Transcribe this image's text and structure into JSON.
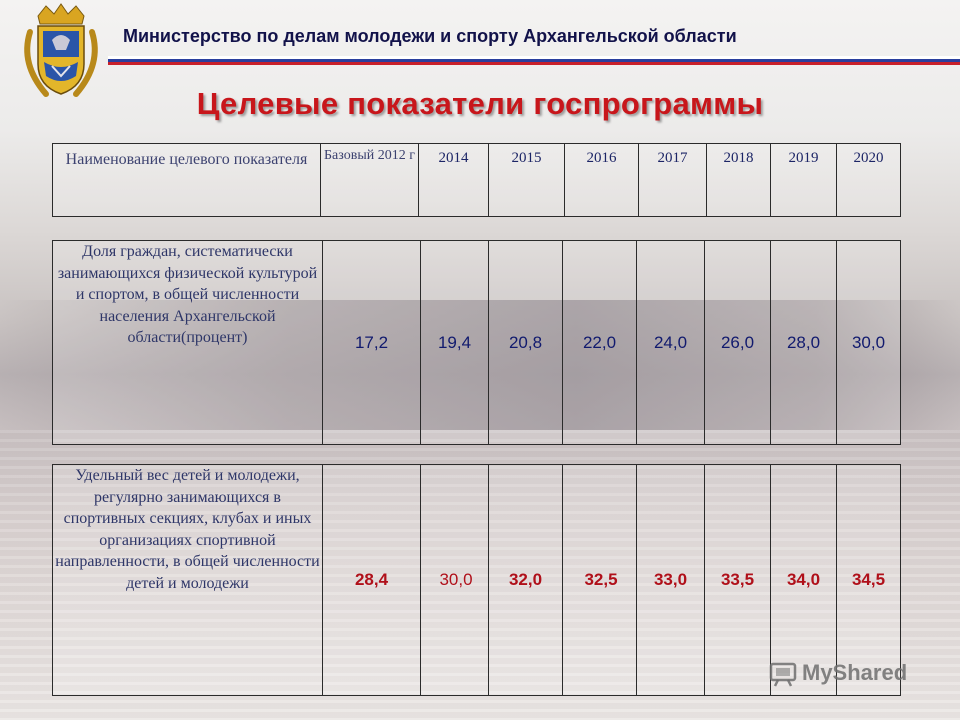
{
  "header": {
    "ministry": "Министерство по делам молодежи и спорту Архангельской области",
    "title": "Целевые показатели госпрограммы"
  },
  "table": {
    "columns": {
      "name": "Наименование целевого показателя",
      "base": "Базовый 2012 г",
      "years": [
        "2014",
        "2015",
        "2016",
        "2017",
        "2018",
        "2019",
        "2020"
      ]
    },
    "rows": [
      {
        "name": "Доля граждан, систематически занимающихся физической культурой и спортом, в общей численности населения Архангельской области(процент)",
        "base": "17,2",
        "values": [
          "19,4",
          "20,8",
          "22,0",
          "24,0",
          "26,0",
          "28,0",
          "30,0"
        ]
      },
      {
        "name": "Удельный вес детей и молодежи, регулярно занимающихся в спортивных секциях, клубах и иных организациях спортивной направленности, в общей численности детей и молодежи",
        "base": "28,4",
        "values": [
          "30,0",
          "32,0",
          "32,5",
          "33,0",
          "33,5",
          "34,0",
          "34,5"
        ]
      }
    ]
  },
  "watermark": {
    "text": "MyShared",
    "icon": "projector-icon"
  },
  "colors": {
    "title_red": "#c8161b",
    "ministry_navy": "#12124a",
    "row1_values": "#111a6e",
    "row2_values": "#b0101a"
  }
}
